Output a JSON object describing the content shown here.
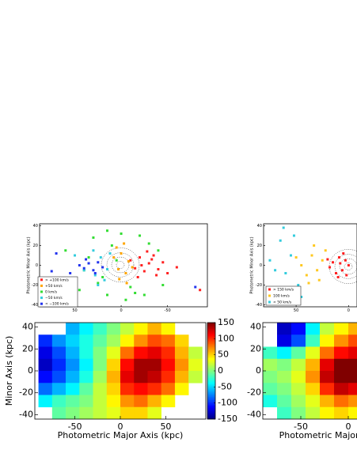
{
  "chart_data": [
    {
      "type": "scatter",
      "ylabel": "Photometric Minor Axis (kpc)",
      "xlim": [
        88,
        -93
      ],
      "ylim": [
        -42,
        42
      ],
      "xticks": [
        50,
        0,
        -50
      ],
      "yticks": [
        40,
        20,
        0,
        -20,
        -40
      ],
      "series": [
        {
          "name": "> +100 km/s",
          "color": "#ff2020",
          "x": [
            -10,
            -15,
            -20,
            -25,
            -30,
            -35,
            -40,
            -45,
            -50,
            -18,
            -28,
            -38,
            -22,
            -33,
            -60,
            -85
          ],
          "y": [
            5,
            -3,
            8,
            -6,
            2,
            10,
            -4,
            3,
            -8,
            -12,
            14,
            -10,
            0,
            6,
            -2,
            -25
          ]
        },
        {
          "name": "+50 km/s",
          "color": "#ffa500",
          "x": [
            0,
            -5,
            5,
            -8,
            2,
            -12,
            8,
            -3,
            3,
            -6
          ],
          "y": [
            12,
            -8,
            18,
            4,
            -14,
            -2,
            8,
            22,
            -4,
            -18
          ]
        },
        {
          "name": "0 km/s",
          "color": "#33dd33",
          "x": [
            60,
            45,
            30,
            15,
            0,
            -15,
            -30,
            -45,
            20,
            10,
            -5,
            -20,
            35,
            25,
            -10,
            5,
            -25,
            40,
            15,
            -40
          ],
          "y": [
            15,
            -25,
            28,
            -30,
            32,
            -28,
            22,
            -20,
            -12,
            20,
            -35,
            30,
            8,
            -18,
            -22,
            5,
            -30,
            -5,
            35,
            15
          ]
        },
        {
          "name": "−50 km/s",
          "color": "#33ccdd",
          "x": [
            35,
            28,
            22,
            18,
            12,
            40,
            30,
            25,
            15,
            50
          ],
          "y": [
            2,
            -10,
            8,
            -15,
            12,
            -5,
            15,
            -20,
            -4,
            10
          ]
        },
        {
          "name": "< −100 km/s",
          "color": "#2233ee",
          "x": [
            45,
            40,
            35,
            30,
            25,
            20,
            55,
            38,
            28,
            70,
            75,
            -80
          ],
          "y": [
            0,
            -3,
            2,
            -5,
            3,
            -2,
            -8,
            6,
            -8,
            12,
            -6,
            -22
          ]
        }
      ]
    },
    {
      "type": "scatter",
      "ylabel": "Photometric Minor Axis (kpc)",
      "xlim": [
        81,
        -8
      ],
      "ylim": [
        -42,
        42
      ],
      "xticks": [
        50,
        0
      ],
      "yticks": [
        40,
        20,
        0,
        -20,
        -40
      ],
      "series": [
        {
          "name": "> 150 km/s",
          "color": "#ff2020",
          "x": [
            0,
            3,
            6,
            9,
            12,
            15,
            18,
            5,
            10,
            20,
            2,
            8
          ],
          "y": [
            0,
            5,
            -5,
            8,
            -8,
            3,
            -2,
            12,
            -12,
            6,
            -10,
            2
          ]
        },
        {
          "name": "100 km/s",
          "color": "#ffc820",
          "x": [
            25,
            30,
            35,
            40,
            22,
            28,
            45,
            33,
            38,
            50
          ],
          "y": [
            5,
            -5,
            10,
            -10,
            15,
            -15,
            0,
            20,
            -18,
            8
          ]
        },
        {
          "name": "< 50 km/s",
          "color": "#33ccdd",
          "x": [
            55,
            60,
            65,
            48,
            70,
            52,
            58,
            75,
            62,
            45
          ],
          "y": [
            10,
            -8,
            25,
            -20,
            -5,
            30,
            -25,
            5,
            38,
            -32
          ]
        }
      ]
    },
    {
      "type": "heatmap",
      "xlabel": "Photometric Major Axis (kpc)",
      "ylabel": "Minor Axis (kpc)",
      "xlim": [
        -94,
        94
      ],
      "ylim": [
        -44,
        44
      ],
      "xticks": [
        -50,
        0,
        50
      ],
      "yticks": [
        40,
        20,
        0,
        -20,
        -40
      ],
      "clim": [
        -150,
        150
      ],
      "cticks": [
        150,
        100,
        50,
        0,
        -50,
        -100,
        -150
      ],
      "x_edges": [
        -90,
        -75,
        -60,
        -45,
        -30,
        -15,
        0,
        15,
        30,
        45,
        60,
        75,
        90
      ],
      "y_edges": [
        44,
        33,
        22,
        11,
        0,
        -11,
        -22,
        -33,
        -44
      ],
      "values": [
        [
          null,
          null,
          -60,
          -40,
          -20,
          0,
          20,
          40,
          60,
          40,
          null,
          null
        ],
        [
          -100,
          -70,
          -50,
          -30,
          -10,
          10,
          40,
          70,
          90,
          80,
          50,
          null
        ],
        [
          -120,
          -90,
          -60,
          -30,
          0,
          30,
          80,
          110,
          120,
          100,
          60,
          20
        ],
        [
          -130,
          -100,
          -70,
          -40,
          0,
          50,
          110,
          140,
          140,
          110,
          70,
          30
        ],
        [
          -110,
          -90,
          -60,
          -30,
          10,
          60,
          120,
          140,
          130,
          100,
          60,
          20
        ],
        [
          -80,
          -60,
          -40,
          -10,
          20,
          50,
          100,
          110,
          100,
          80,
          40,
          null
        ],
        [
          -40,
          -20,
          -10,
          0,
          20,
          40,
          70,
          80,
          60,
          40,
          null,
          null
        ],
        [
          null,
          -10,
          0,
          10,
          20,
          30,
          50,
          50,
          30,
          null,
          null,
          null
        ]
      ]
    },
    {
      "type": "heatmap",
      "xlabel": "Photometric Major Axis (kpc)",
      "xlim": [
        -90,
        90
      ],
      "ylim": [
        -44,
        44
      ],
      "xticks": [
        -50,
        0
      ],
      "yticks": [
        40,
        20,
        0,
        -20,
        -40
      ],
      "clim": [
        -150,
        150
      ],
      "x_edges": [
        -90,
        -75,
        -60,
        -45,
        -30,
        -15,
        0,
        15
      ],
      "y_edges": [
        44,
        33,
        22,
        11,
        0,
        -11,
        -22,
        -33,
        -44
      ],
      "values": [
        [
          null,
          -130,
          -110,
          -40,
          20,
          40,
          60
        ],
        [
          null,
          -120,
          -90,
          -20,
          40,
          70,
          90
        ],
        [
          -20,
          -40,
          -10,
          30,
          80,
          110,
          120
        ],
        [
          10,
          0,
          20,
          60,
          120,
          150,
          150
        ],
        [
          0,
          10,
          30,
          70,
          130,
          150,
          150
        ],
        [
          -10,
          0,
          20,
          50,
          100,
          130,
          120
        ],
        [
          -30,
          -10,
          10,
          30,
          60,
          80,
          70
        ],
        [
          null,
          -20,
          0,
          20,
          40,
          50,
          40
        ]
      ]
    }
  ]
}
